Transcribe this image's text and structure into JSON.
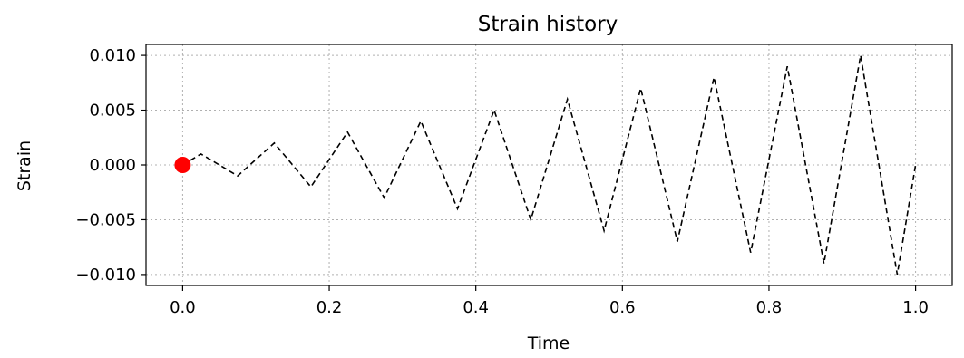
{
  "chart_data": {
    "type": "line",
    "title": "Strain history",
    "xlabel": "Time",
    "ylabel": "Strain",
    "xlim": [
      -0.05,
      1.05
    ],
    "ylim": [
      -0.011,
      0.011
    ],
    "x_ticks": [
      0.0,
      0.2,
      0.4,
      0.6,
      0.8,
      1.0
    ],
    "x_tick_labels": [
      "0.0",
      "0.2",
      "0.4",
      "0.6",
      "0.8",
      "1.0"
    ],
    "y_ticks": [
      -0.01,
      -0.005,
      0.0,
      0.005,
      0.01
    ],
    "y_tick_labels": [
      "−0.010",
      "−0.005",
      "0.000",
      "0.005",
      "0.010"
    ],
    "grid": true,
    "series": [
      {
        "style": "dashed",
        "color": "#000000",
        "x": [
          0.0,
          0.025,
          0.075,
          0.125,
          0.175,
          0.225,
          0.275,
          0.325,
          0.375,
          0.425,
          0.475,
          0.525,
          0.575,
          0.625,
          0.675,
          0.725,
          0.775,
          0.825,
          0.875,
          0.925,
          0.975,
          1.0
        ],
        "y": [
          0.0,
          0.001,
          -0.001,
          0.002,
          -0.002,
          0.003,
          -0.003,
          0.004,
          -0.004,
          0.005,
          -0.005,
          0.006,
          -0.006,
          0.007,
          -0.007,
          0.008,
          -0.008,
          0.009,
          -0.009,
          0.01,
          -0.01,
          0.0
        ]
      }
    ],
    "marker": {
      "x": 0.0,
      "y": 0.0,
      "color": "#ff0000"
    }
  }
}
